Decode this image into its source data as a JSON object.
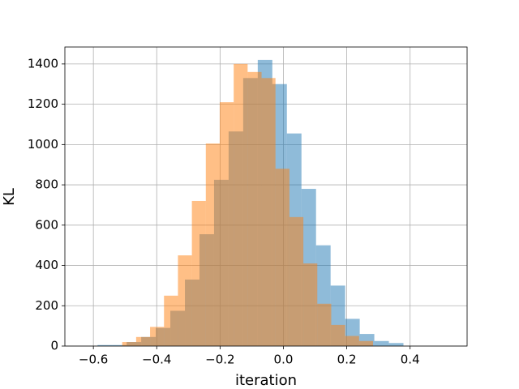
{
  "chart_data": {
    "type": "histogram",
    "x_label": "iteration",
    "y_label": "KL",
    "xlim": [
      -0.69,
      0.58
    ],
    "ylim": [
      0,
      1484
    ],
    "xticks": [
      {
        "value": -0.6,
        "label": "−0.6"
      },
      {
        "value": -0.4,
        "label": "−0.4"
      },
      {
        "value": -0.2,
        "label": "−0.2"
      },
      {
        "value": 0,
        "label": "0.0"
      },
      0.2,
      0.4
    ],
    "yticks": [
      0,
      200,
      400,
      600,
      800,
      1000,
      1200,
      1400
    ],
    "grid": true,
    "alpha": 0.5,
    "series": [
      {
        "color": "#1f77b4",
        "bins": [
          -0.587,
          -0.541,
          -0.495,
          -0.449,
          -0.403,
          -0.357,
          -0.311,
          -0.265,
          -0.219,
          -0.173,
          -0.127,
          -0.081,
          -0.035,
          0.011,
          0.057,
          0.103,
          0.149,
          0.195,
          0.241,
          0.287,
          0.333,
          0.379
        ],
        "values": [
          5,
          5,
          20,
          45,
          90,
          175,
          330,
          555,
          825,
          1065,
          1330,
          1420,
          1300,
          1055,
          780,
          500,
          300,
          135,
          60,
          25,
          15
        ]
      },
      {
        "color": "#ff7f0e",
        "bins": [
          -0.509,
          -0.465,
          -0.421,
          -0.377,
          -0.333,
          -0.289,
          -0.245,
          -0.201,
          -0.157,
          -0.113,
          -0.069,
          -0.025,
          0.019,
          0.063,
          0.107,
          0.151,
          0.195,
          0.239,
          0.283
        ],
        "values": [
          20,
          45,
          95,
          250,
          450,
          720,
          1005,
          1210,
          1400,
          1360,
          1330,
          880,
          640,
          410,
          210,
          105,
          50,
          25
        ]
      }
    ]
  }
}
